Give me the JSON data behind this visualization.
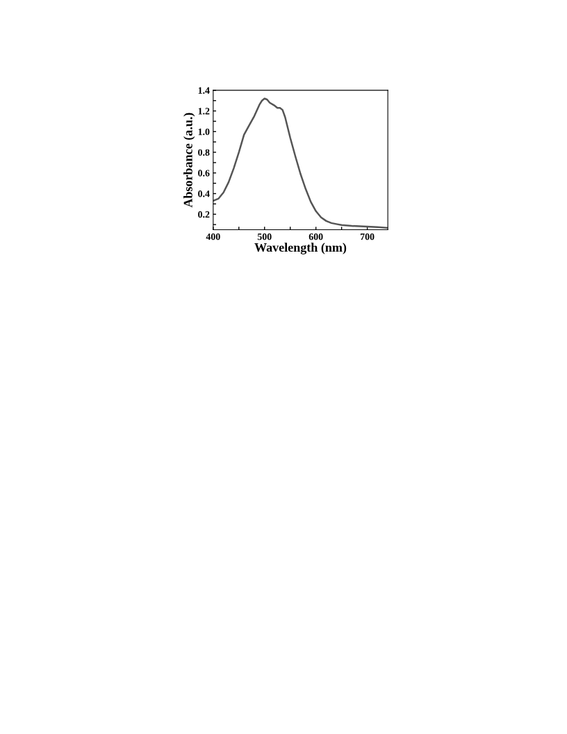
{
  "chart_data": {
    "type": "line",
    "xlabel": "Wavelength (nm)",
    "ylabel": "Absorbance (a.u.)",
    "x": [
      400,
      410,
      420,
      430,
      440,
      450,
      460,
      470,
      480,
      490,
      495,
      500,
      505,
      510,
      520,
      525,
      530,
      535,
      540,
      550,
      560,
      570,
      580,
      590,
      600,
      610,
      620,
      630,
      640,
      650,
      670,
      700,
      720,
      740
    ],
    "series": [
      {
        "color": "#555555",
        "values": [
          0.33,
          0.35,
          0.41,
          0.51,
          0.645,
          0.8,
          0.97,
          1.06,
          1.15,
          1.26,
          1.3,
          1.32,
          1.31,
          1.28,
          1.25,
          1.23,
          1.23,
          1.21,
          1.14,
          0.94,
          0.76,
          0.59,
          0.445,
          0.32,
          0.23,
          0.17,
          0.135,
          0.115,
          0.105,
          0.095,
          0.087,
          0.08,
          0.075,
          0.068
        ]
      }
    ],
    "xlim": [
      400,
      740
    ],
    "ylim": [
      0.05,
      1.4
    ],
    "xticks": [
      400,
      {
        "value": 450,
        "label": null
      },
      500,
      {
        "value": 550,
        "label": null
      },
      600,
      {
        "value": 650,
        "label": null
      },
      700
    ],
    "yticks": [
      {
        "value": 0.1,
        "label": null
      },
      0.2,
      {
        "value": 0.3,
        "label": null
      },
      0.4,
      {
        "value": 0.5,
        "label": null
      },
      0.6,
      {
        "value": 0.7,
        "label": null
      },
      0.8,
      {
        "value": 0.9,
        "label": null
      },
      {
        "value": 1,
        "label": "1.0"
      },
      {
        "value": 1.1,
        "label": null
      },
      1.2,
      {
        "value": 1.3,
        "label": null
      },
      1.4
    ],
    "grid": false,
    "legend": false,
    "marker": "none",
    "line_style": "solid"
  }
}
